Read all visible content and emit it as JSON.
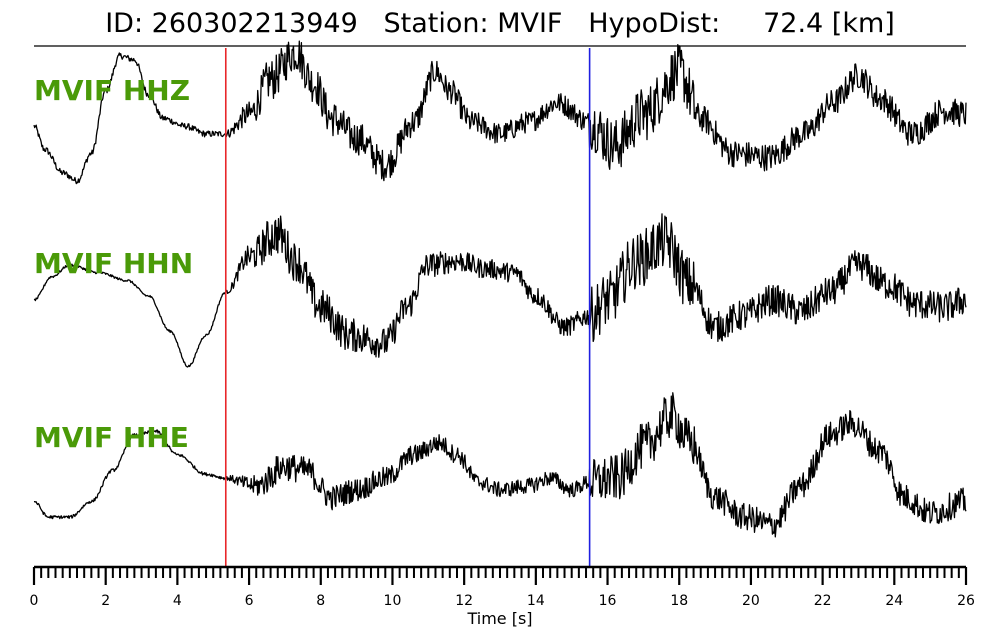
{
  "header": {
    "title": "ID: 260302213949   Station: MVIF   HypoDist:     72.4 [km]"
  },
  "colors": {
    "trace": "#000000",
    "label": "#4a9a08",
    "p_pick": "#e8262a",
    "s_pick": "#1f1fe0",
    "axis": "#000000"
  },
  "chart_data": {
    "type": "line",
    "title": "ID: 260302213949   Station: MVIF   HypoDist:     72.4 [km]",
    "xlabel": "Time [s]",
    "ylabel": "",
    "xlim": [
      0,
      26
    ],
    "x_ticks": [
      "0",
      "2",
      "4",
      "6",
      "8",
      "10",
      "12",
      "14",
      "16",
      "18",
      "20",
      "22",
      "24",
      "26"
    ],
    "x_tick_values": [
      0,
      2,
      4,
      6,
      8,
      10,
      12,
      14,
      16,
      18,
      20,
      22,
      24,
      26
    ],
    "minor_tick_step": 0.2,
    "grid": false,
    "picks": [
      {
        "phase": "P",
        "time": 5.35,
        "color": "#e8262a"
      },
      {
        "phase": "S",
        "time": 15.5,
        "color": "#1f1fe0"
      }
    ],
    "series": [
      {
        "name": "MVIF HHZ",
        "noise": [
          0.08,
          0.55,
          0.28,
          0.7,
          0.35
        ],
        "points": [
          [
            0,
            0.05
          ],
          [
            0.3,
            -0.25
          ],
          [
            0.8,
            -0.55
          ],
          [
            1.2,
            -0.65
          ],
          [
            1.6,
            -0.3
          ],
          [
            2.0,
            0.5
          ],
          [
            2.4,
            0.95
          ],
          [
            2.8,
            0.9
          ],
          [
            3.2,
            0.45
          ],
          [
            3.6,
            0.15
          ],
          [
            4.2,
            0.05
          ],
          [
            4.8,
            -0.05
          ],
          [
            5.35,
            -0.05
          ],
          [
            6.0,
            0.2
          ],
          [
            6.6,
            0.65
          ],
          [
            7.3,
            1.0
          ],
          [
            7.8,
            0.6
          ],
          [
            8.3,
            0.15
          ],
          [
            9.0,
            -0.1
          ],
          [
            9.8,
            -0.45
          ],
          [
            10.6,
            0.1
          ],
          [
            11.2,
            0.75
          ],
          [
            11.6,
            0.5
          ],
          [
            12.2,
            0.1
          ],
          [
            13.0,
            -0.05
          ],
          [
            13.8,
            0.1
          ],
          [
            14.6,
            0.35
          ],
          [
            15.5,
            0.1
          ],
          [
            16.2,
            -0.2
          ],
          [
            17.0,
            0.2
          ],
          [
            18.0,
            0.75
          ],
          [
            18.6,
            0.15
          ],
          [
            19.5,
            -0.3
          ],
          [
            20.5,
            -0.35
          ],
          [
            21.5,
            -0.05
          ],
          [
            22.3,
            0.35
          ],
          [
            23.0,
            0.7
          ],
          [
            23.6,
            0.4
          ],
          [
            24.5,
            -0.05
          ],
          [
            25.4,
            0.25
          ],
          [
            26.0,
            0.2
          ]
        ]
      },
      {
        "name": "MVIF HHN",
        "noise": [
          0.03,
          0.55,
          0.25,
          0.72,
          0.4
        ],
        "points": [
          [
            0,
            0.0
          ],
          [
            0.5,
            0.3
          ],
          [
            1.0,
            0.45
          ],
          [
            1.8,
            0.35
          ],
          [
            2.6,
            0.25
          ],
          [
            3.2,
            0.05
          ],
          [
            3.8,
            -0.4
          ],
          [
            4.3,
            -0.85
          ],
          [
            4.8,
            -0.45
          ],
          [
            5.35,
            0.1
          ],
          [
            6.0,
            0.55
          ],
          [
            6.8,
            0.85
          ],
          [
            7.3,
            0.5
          ],
          [
            8.0,
            -0.1
          ],
          [
            8.8,
            -0.45
          ],
          [
            9.8,
            -0.55
          ],
          [
            10.4,
            -0.1
          ],
          [
            11.0,
            0.45
          ],
          [
            11.8,
            0.5
          ],
          [
            12.6,
            0.4
          ],
          [
            13.4,
            0.35
          ],
          [
            14.0,
            0.05
          ],
          [
            14.8,
            -0.35
          ],
          [
            15.5,
            -0.2
          ],
          [
            16.0,
            0.0
          ],
          [
            16.8,
            0.5
          ],
          [
            17.6,
            0.75
          ],
          [
            18.3,
            0.2
          ],
          [
            19.0,
            -0.35
          ],
          [
            19.8,
            -0.2
          ],
          [
            20.6,
            0.0
          ],
          [
            21.4,
            -0.15
          ],
          [
            22.2,
            0.1
          ],
          [
            23.0,
            0.45
          ],
          [
            23.8,
            0.2
          ],
          [
            24.6,
            -0.05
          ],
          [
            25.4,
            -0.1
          ],
          [
            26.0,
            0.0
          ]
        ]
      },
      {
        "name": "MVIF HHE",
        "noise": [
          0.04,
          0.38,
          0.2,
          0.6,
          0.35
        ],
        "points": [
          [
            0,
            -0.25
          ],
          [
            0.4,
            -0.45
          ],
          [
            1.0,
            -0.45
          ],
          [
            1.6,
            -0.25
          ],
          [
            2.2,
            0.15
          ],
          [
            2.8,
            0.6
          ],
          [
            3.4,
            0.65
          ],
          [
            4.0,
            0.35
          ],
          [
            4.8,
            0.1
          ],
          [
            5.35,
            0.05
          ],
          [
            6.2,
            -0.05
          ],
          [
            7.0,
            0.2
          ],
          [
            7.6,
            0.15
          ],
          [
            8.3,
            -0.2
          ],
          [
            9.0,
            -0.1
          ],
          [
            9.8,
            0.05
          ],
          [
            10.6,
            0.35
          ],
          [
            11.3,
            0.5
          ],
          [
            11.8,
            0.35
          ],
          [
            12.4,
            0.0
          ],
          [
            13.0,
            -0.1
          ],
          [
            13.8,
            -0.05
          ],
          [
            14.4,
            0.05
          ],
          [
            15.0,
            -0.1
          ],
          [
            15.5,
            0.0
          ],
          [
            16.3,
            0.05
          ],
          [
            17.0,
            0.45
          ],
          [
            17.8,
            0.85
          ],
          [
            18.3,
            0.5
          ],
          [
            19.0,
            -0.2
          ],
          [
            19.8,
            -0.45
          ],
          [
            20.6,
            -0.55
          ],
          [
            21.4,
            -0.05
          ],
          [
            22.2,
            0.6
          ],
          [
            22.8,
            0.75
          ],
          [
            23.6,
            0.4
          ],
          [
            24.3,
            -0.2
          ],
          [
            25.0,
            -0.4
          ],
          [
            26.0,
            -0.25
          ]
        ]
      }
    ]
  }
}
